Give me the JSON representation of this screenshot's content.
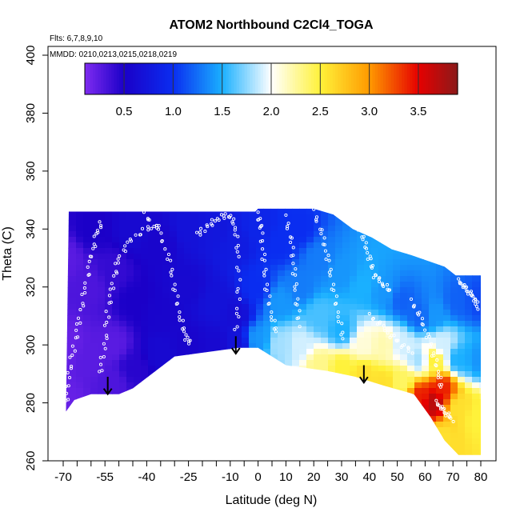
{
  "chart_data": {
    "type": "heatmap",
    "title": "ATOM2 Northbound C2Cl4_TOGA",
    "note_flights": "Flts: 6,7,8,9,10",
    "note_dates": "MMDD: 0210,0213,0215,0218,0219",
    "xlabel": "Latitude (deg N)",
    "ylabel": "Theta (C)",
    "xlim": [
      -70,
      80
    ],
    "ylim": [
      260,
      400
    ],
    "x_tick_labels": [
      "-70",
      "-55",
      "-40",
      "-25",
      "-10",
      "0",
      "10",
      "20",
      "30",
      "40",
      "50",
      "60",
      "70",
      "80"
    ],
    "x_ticks": [
      -70,
      -55,
      -40,
      -25,
      -10,
      0,
      10,
      20,
      30,
      40,
      50,
      60,
      70,
      80
    ],
    "x_minor_ticks": [
      -65,
      -60,
      -50,
      -45,
      -35,
      -30,
      -20,
      -15,
      -5,
      5,
      15,
      25,
      35,
      45,
      55,
      65,
      75
    ],
    "y_tick_labels": [
      "260",
      "280",
      "300",
      "320",
      "340",
      "360",
      "380",
      "400"
    ],
    "y_ticks": [
      260,
      280,
      300,
      320,
      340,
      360,
      380,
      400
    ],
    "colorbar": {
      "range": [
        0.1,
        3.9
      ],
      "tick_labels": [
        "0.5",
        "1.0",
        "1.5",
        "2.0",
        "2.5",
        "3.0",
        "3.5"
      ],
      "ticks": [
        0.5,
        1.0,
        1.5,
        2.0,
        2.5,
        3.0,
        3.5
      ],
      "stops": [
        {
          "v": 0.1,
          "c": "#7f2bf0"
        },
        {
          "v": 0.5,
          "c": "#1b00c8"
        },
        {
          "v": 1.0,
          "c": "#0a2df0"
        },
        {
          "v": 1.5,
          "c": "#1ab0ff"
        },
        {
          "v": 2.0,
          "c": "#ffffff"
        },
        {
          "v": 2.5,
          "c": "#fff23a"
        },
        {
          "v": 3.0,
          "c": "#ff9a00"
        },
        {
          "v": 3.5,
          "c": "#e60000"
        },
        {
          "v": 3.9,
          "c": "#8b1a1a"
        }
      ]
    },
    "field_points": [
      {
        "x": -69,
        "y": 330,
        "v": 0.25
      },
      {
        "x": -69,
        "y": 300,
        "v": 0.2
      },
      {
        "x": -69,
        "y": 280,
        "v": 0.2
      },
      {
        "x": -60,
        "y": 340,
        "v": 0.5
      },
      {
        "x": -60,
        "y": 320,
        "v": 0.3
      },
      {
        "x": -60,
        "y": 295,
        "v": 0.25
      },
      {
        "x": -52,
        "y": 325,
        "v": 0.4
      },
      {
        "x": -52,
        "y": 300,
        "v": 0.25
      },
      {
        "x": -52,
        "y": 287,
        "v": 0.3
      },
      {
        "x": -45,
        "y": 340,
        "v": 0.6
      },
      {
        "x": -45,
        "y": 315,
        "v": 0.5
      },
      {
        "x": -45,
        "y": 292,
        "v": 0.45
      },
      {
        "x": -35,
        "y": 335,
        "v": 0.55
      },
      {
        "x": -35,
        "y": 310,
        "v": 0.55
      },
      {
        "x": -35,
        "y": 298,
        "v": 0.6
      },
      {
        "x": -25,
        "y": 340,
        "v": 0.7
      },
      {
        "x": -25,
        "y": 320,
        "v": 0.6
      },
      {
        "x": -25,
        "y": 300,
        "v": 0.55
      },
      {
        "x": -15,
        "y": 340,
        "v": 0.75
      },
      {
        "x": -15,
        "y": 315,
        "v": 0.7
      },
      {
        "x": -15,
        "y": 300,
        "v": 0.6
      },
      {
        "x": -8,
        "y": 335,
        "v": 0.8
      },
      {
        "x": -8,
        "y": 310,
        "v": 0.65
      },
      {
        "x": -8,
        "y": 300,
        "v": 0.7
      },
      {
        "x": 0,
        "y": 340,
        "v": 0.9
      },
      {
        "x": 0,
        "y": 320,
        "v": 1.0
      },
      {
        "x": 0,
        "y": 302,
        "v": 1.4
      },
      {
        "x": 8,
        "y": 335,
        "v": 1.0
      },
      {
        "x": 8,
        "y": 315,
        "v": 1.4
      },
      {
        "x": 8,
        "y": 300,
        "v": 1.8
      },
      {
        "x": 15,
        "y": 340,
        "v": 1.0
      },
      {
        "x": 15,
        "y": 320,
        "v": 1.3
      },
      {
        "x": 15,
        "y": 300,
        "v": 1.9
      },
      {
        "x": 22,
        "y": 330,
        "v": 1.3
      },
      {
        "x": 22,
        "y": 310,
        "v": 1.6
      },
      {
        "x": 22,
        "y": 293,
        "v": 2.3
      },
      {
        "x": 30,
        "y": 325,
        "v": 1.4
      },
      {
        "x": 30,
        "y": 305,
        "v": 1.5
      },
      {
        "x": 30,
        "y": 292,
        "v": 2.5
      },
      {
        "x": 38,
        "y": 320,
        "v": 1.5
      },
      {
        "x": 38,
        "y": 300,
        "v": 2.1
      },
      {
        "x": 38,
        "y": 290,
        "v": 2.6
      },
      {
        "x": 45,
        "y": 318,
        "v": 1.4
      },
      {
        "x": 45,
        "y": 300,
        "v": 2.2
      },
      {
        "x": 45,
        "y": 287,
        "v": 2.6
      },
      {
        "x": 52,
        "y": 315,
        "v": 1.2
      },
      {
        "x": 52,
        "y": 300,
        "v": 1.9
      },
      {
        "x": 52,
        "y": 287,
        "v": 2.4
      },
      {
        "x": 58,
        "y": 310,
        "v": 1.2
      },
      {
        "x": 58,
        "y": 295,
        "v": 1.8
      },
      {
        "x": 58,
        "y": 282,
        "v": 3.4
      },
      {
        "x": 63,
        "y": 310,
        "v": 1.4
      },
      {
        "x": 63,
        "y": 295,
        "v": 2.5
      },
      {
        "x": 63,
        "y": 280,
        "v": 3.7
      },
      {
        "x": 66,
        "y": 300,
        "v": 1.9
      },
      {
        "x": 66,
        "y": 285,
        "v": 3.4
      },
      {
        "x": 66,
        "y": 268,
        "v": 2.6
      },
      {
        "x": 72,
        "y": 315,
        "v": 1.2
      },
      {
        "x": 72,
        "y": 295,
        "v": 1.5
      },
      {
        "x": 72,
        "y": 278,
        "v": 2.6
      },
      {
        "x": 79,
        "y": 315,
        "v": 1.1
      },
      {
        "x": 79,
        "y": 295,
        "v": 1.4
      },
      {
        "x": 79,
        "y": 275,
        "v": 2.5
      }
    ],
    "coverage_top": [
      [
        -68,
        346
      ],
      [
        -1,
        346
      ],
      [
        0,
        347
      ],
      [
        20,
        347
      ],
      [
        27,
        345
      ],
      [
        34,
        340
      ],
      [
        41,
        337
      ],
      [
        48,
        333
      ],
      [
        55,
        331
      ],
      [
        61,
        329
      ],
      [
        67,
        327
      ],
      [
        71,
        324
      ],
      [
        80,
        324
      ]
    ],
    "coverage_bottom": [
      [
        -69,
        277
      ],
      [
        -66,
        281
      ],
      [
        -60,
        283
      ],
      [
        -50,
        283
      ],
      [
        -45,
        285
      ],
      [
        -30,
        296
      ],
      [
        -7,
        299
      ],
      [
        0,
        299
      ],
      [
        10,
        293
      ],
      [
        25,
        291
      ],
      [
        35,
        289
      ],
      [
        45,
        286
      ],
      [
        56,
        283
      ],
      [
        62,
        275
      ],
      [
        67,
        267
      ],
      [
        72,
        262
      ],
      [
        80,
        262
      ]
    ],
    "arrows": [
      {
        "x": -54,
        "y_from": 289,
        "y_to": 283
      },
      {
        "x": -8,
        "y_from": 303,
        "y_to": 297
      },
      {
        "x": 38,
        "y_from": 293,
        "y_to": 287
      }
    ],
    "flight_tracks": [
      [
        [
          -69,
          280
        ],
        [
          -68,
          290
        ],
        [
          -66,
          300
        ],
        [
          -64,
          310
        ],
        [
          -62,
          320
        ],
        [
          -60,
          330
        ],
        [
          -58,
          338
        ],
        [
          -56,
          343
        ]
      ],
      [
        [
          -57,
          290
        ],
        [
          -55,
          300
        ],
        [
          -54,
          312
        ],
        [
          -52,
          322
        ],
        [
          -50,
          330
        ],
        [
          -46,
          336
        ],
        [
          -40,
          340
        ],
        [
          -34,
          341
        ]
      ],
      [
        [
          -41,
          345
        ],
        [
          -36,
          340
        ],
        [
          -32,
          330
        ],
        [
          -30,
          320
        ],
        [
          -28,
          310
        ],
        [
          -26,
          303
        ],
        [
          -24,
          300
        ]
      ],
      [
        [
          -22,
          338
        ],
        [
          -18,
          341
        ],
        [
          -14,
          344
        ],
        [
          -10,
          345
        ],
        [
          -8,
          340
        ],
        [
          -7,
          330
        ],
        [
          -7,
          315
        ],
        [
          -8,
          303
        ]
      ],
      [
        [
          0,
          345
        ],
        [
          1,
          340
        ],
        [
          2,
          330
        ],
        [
          3,
          320
        ],
        [
          5,
          310
        ],
        [
          7,
          303
        ]
      ],
      [
        [
          10,
          344
        ],
        [
          12,
          335
        ],
        [
          13,
          325
        ],
        [
          14,
          315
        ],
        [
          15,
          305
        ]
      ],
      [
        [
          20,
          346
        ],
        [
          23,
          338
        ],
        [
          25,
          330
        ],
        [
          27,
          320
        ],
        [
          29,
          310
        ],
        [
          31,
          300
        ]
      ],
      [
        [
          35,
          342
        ],
        [
          38,
          336
        ],
        [
          40,
          330
        ],
        [
          42,
          324
        ],
        [
          45,
          321
        ],
        [
          48,
          318
        ]
      ],
      [
        [
          40,
          310
        ],
        [
          44,
          307
        ],
        [
          48,
          303
        ],
        [
          52,
          300
        ],
        [
          56,
          297
        ]
      ],
      [
        [
          55,
          315
        ],
        [
          58,
          310
        ],
        [
          61,
          303
        ],
        [
          63,
          297
        ],
        [
          65,
          290
        ],
        [
          66,
          284
        ]
      ],
      [
        [
          72,
          322
        ],
        [
          74,
          320
        ],
        [
          76,
          318
        ],
        [
          78,
          316
        ],
        [
          79,
          312
        ]
      ],
      [
        [
          64,
          280
        ],
        [
          66,
          278
        ],
        [
          68,
          276
        ],
        [
          70,
          274
        ]
      ]
    ],
    "colors": {
      "arrow": "#000000",
      "points": "#ffffff",
      "frame": "#000000"
    }
  }
}
